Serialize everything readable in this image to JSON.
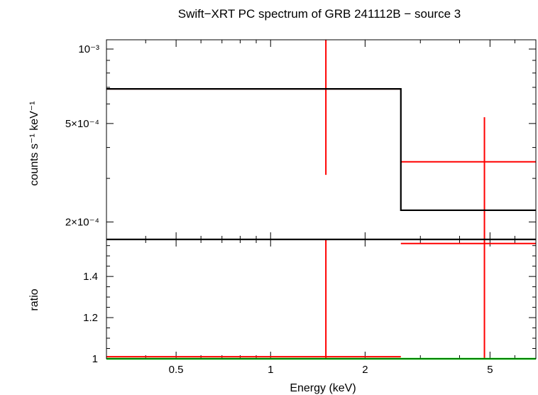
{
  "chart_data": [
    {
      "type": "line",
      "panel": "spectrum",
      "title": "Swift−XRT PC spectrum of GRB 241112B − source 3",
      "ylabel": "counts s⁻¹ keV⁻¹",
      "y_scale": "log",
      "x_scale": "log",
      "ylim": [
        0.00017,
        0.00109
      ],
      "xlim": [
        0.3,
        7.0
      ],
      "y_ticks": [
        {
          "value": 0.001,
          "label": "10⁻³"
        },
        {
          "value": 0.0005,
          "label": "5×10⁻⁴"
        },
        {
          "value": 0.0002,
          "label": "2×10⁻⁴"
        }
      ],
      "series": [
        {
          "color": "#ff0000",
          "style": "data-crosses",
          "points": [
            {
              "x": 1.5,
              "x_low": 0.3,
              "x_high": 2.6,
              "y": 0.00069,
              "y_low": 0.00031,
              "y_high": 0.00109
            },
            {
              "x": 4.8,
              "x_low": 2.6,
              "x_high": 7.0,
              "y": 0.00035,
              "y_low": 0.00017,
              "y_high": 0.00053
            }
          ]
        },
        {
          "color": "#000000",
          "style": "model-step",
          "bins": [
            {
              "x_low": 0.3,
              "x_high": 2.6,
              "y": 0.00069
            },
            {
              "x_low": 2.6,
              "x_high": 7.0,
              "y": 0.000223
            }
          ]
        }
      ]
    },
    {
      "type": "line",
      "panel": "ratio",
      "xlabel": "Energy (keV)",
      "ylabel": "ratio",
      "x_scale": "log",
      "xlim": [
        0.3,
        7.0
      ],
      "ylim": [
        1.0,
        1.58
      ],
      "x_ticks": [
        {
          "value": 0.5,
          "label": "0.5"
        },
        {
          "value": 1,
          "label": "1"
        },
        {
          "value": 2,
          "label": "2"
        },
        {
          "value": 5,
          "label": "5"
        }
      ],
      "y_ticks": [
        {
          "value": 1,
          "label": "1"
        },
        {
          "value": 1.2,
          "label": "1.2"
        },
        {
          "value": 1.4,
          "label": "1.4"
        }
      ],
      "series": [
        {
          "color": "#ff0000",
          "style": "data-crosses",
          "points": [
            {
              "x": 1.5,
              "x_low": 0.3,
              "x_high": 2.6,
              "y": 1.01,
              "y_low": 1.0,
              "y_high": 1.58
            },
            {
              "x": 4.8,
              "x_low": 2.6,
              "x_high": 7.0,
              "y": 1.56,
              "y_low": 1.0,
              "y_high": 1.58
            }
          ]
        },
        {
          "color": "#00ff00",
          "style": "reference-line",
          "y": 1.0
        }
      ]
    }
  ]
}
